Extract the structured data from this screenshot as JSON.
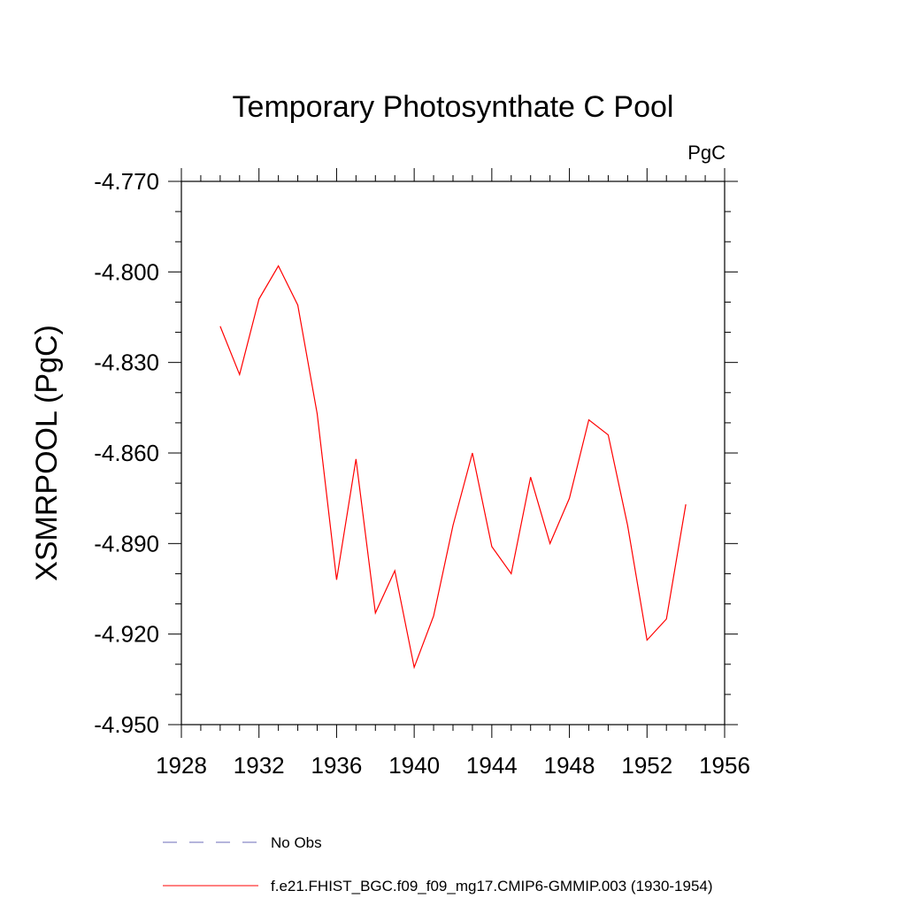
{
  "chart_data": {
    "type": "line",
    "title": "Temporary Photosynthate C Pool",
    "units": "PgC",
    "xlabel": "",
    "ylabel": "XSMRPOOL  (PgC)",
    "xlim": [
      1928,
      1956
    ],
    "ylim": [
      -4.95,
      -4.77
    ],
    "xticks": [
      1928,
      1932,
      1936,
      1940,
      1944,
      1948,
      1952,
      1956
    ],
    "xtick_labels": [
      "1928",
      "1932",
      "1936",
      "1940",
      "1944",
      "1948",
      "1952",
      "1956"
    ],
    "xminor_step": 1,
    "yticks": [
      -4.77,
      -4.8,
      -4.83,
      -4.86,
      -4.89,
      -4.92,
      -4.95
    ],
    "ytick_labels": [
      "-4.770",
      "-4.800",
      "-4.830",
      "-4.860",
      "-4.890",
      "-4.920",
      "-4.950"
    ],
    "yminor_step": 0.01,
    "grid": false,
    "legend_position": "bottom",
    "series": [
      {
        "name": "f.e21.FHIST_BGC.f09_f09_mg17.CMIP6-GMMIP.003 (1930-1954)",
        "color": "#ff0000",
        "dash": "solid",
        "x": [
          1930,
          1931,
          1932,
          1933,
          1934,
          1935,
          1936,
          1937,
          1938,
          1939,
          1940,
          1941,
          1942,
          1943,
          1944,
          1945,
          1946,
          1947,
          1948,
          1949,
          1950,
          1951,
          1952,
          1953,
          1954
        ],
        "values": [
          -4.818,
          -4.834,
          -4.809,
          -4.798,
          -4.811,
          -4.847,
          -4.902,
          -4.862,
          -4.913,
          -4.899,
          -4.931,
          -4.914,
          -4.884,
          -4.86,
          -4.891,
          -4.9,
          -4.868,
          -4.89,
          -4.875,
          -4.849,
          -4.854,
          -4.884,
          -4.922,
          -4.915,
          -4.877
        ]
      }
    ],
    "legend": [
      {
        "label": "No Obs",
        "color": "#6b6bb8",
        "dash": "dashed"
      },
      {
        "label": "f.e21.FHIST_BGC.f09_f09_mg17.CMIP6-GMMIP.003 (1930-1954)",
        "color": "#ff0000",
        "dash": "solid"
      }
    ]
  }
}
